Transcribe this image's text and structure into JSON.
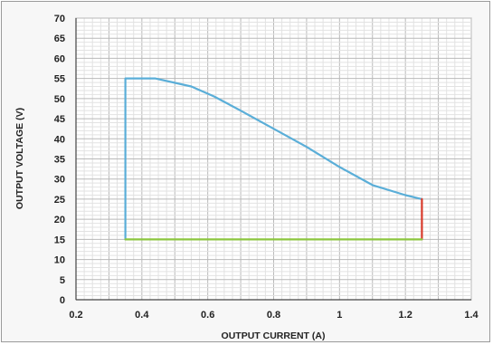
{
  "chart_data": {
    "type": "line",
    "title": "",
    "xlabel": "OUTPUT CURRENT (A)",
    "ylabel": "OUTPUT VOLTAGE (V)",
    "xlim": [
      0.2,
      1.4
    ],
    "ylim": [
      0,
      70
    ],
    "x_ticks": [
      "0.2",
      "0.4",
      "0.6",
      "0.8",
      "1",
      "1.2",
      "1.4"
    ],
    "y_ticks": [
      "0",
      "5",
      "10",
      "15",
      "20",
      "25",
      "30",
      "35",
      "40",
      "45",
      "50",
      "55",
      "60",
      "65",
      "70"
    ],
    "grid": true,
    "legend": "none",
    "series": [
      {
        "color": "#5aaed8",
        "points": [
          [
            0.35,
            15
          ],
          [
            0.35,
            55
          ],
          [
            0.44,
            55
          ],
          [
            0.55,
            53
          ],
          [
            0.62,
            50.5
          ],
          [
            0.7,
            47
          ],
          [
            0.8,
            42.5
          ],
          [
            0.9,
            38
          ],
          [
            1.0,
            33
          ],
          [
            1.1,
            28.5
          ],
          [
            1.2,
            26
          ],
          [
            1.25,
            25
          ]
        ]
      },
      {
        "color": "#d83a2a",
        "points": [
          [
            1.25,
            25
          ],
          [
            1.25,
            15
          ]
        ]
      },
      {
        "color": "#8cc63f",
        "points": [
          [
            0.35,
            15
          ],
          [
            1.25,
            15
          ]
        ]
      }
    ]
  }
}
